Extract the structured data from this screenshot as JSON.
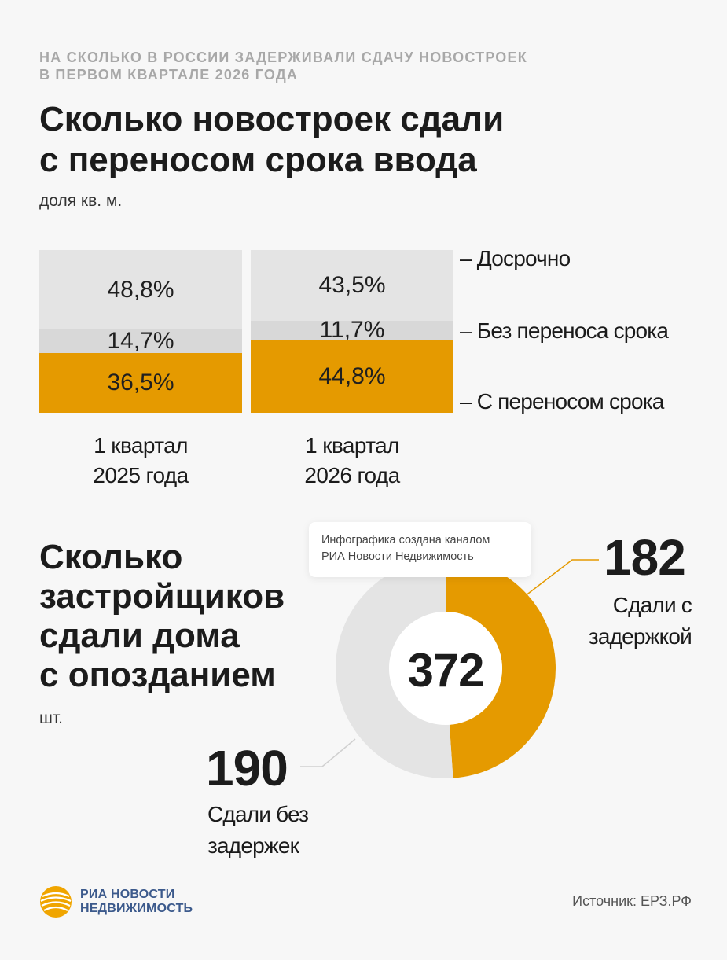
{
  "kicker": {
    "line1": "НА СКОЛЬКО В РОССИИ ЗАДЕРЖИВАЛИ СДАЧУ НОВОСТРОЕК",
    "line2": "В ПЕРВОМ КВАРТАЛЕ 2026 ГОДА"
  },
  "chart_data": [
    {
      "type": "bar",
      "stacked": true,
      "title": "Сколько новостроек сдали с переносом срока ввода",
      "title_lines": [
        "Сколько новостроек сдали",
        "с переносом срока ввода"
      ],
      "unit": "доля кв. м.",
      "categories": [
        {
          "line1": "1 квартал",
          "line2": "2025 года"
        },
        {
          "line1": "1 квартал",
          "line2": "2026 года"
        }
      ],
      "series": [
        {
          "name": "С переносом срока",
          "color": "#e59a00",
          "values": [
            36.5,
            44.8
          ],
          "labels": [
            "36,5%",
            "44,8%"
          ]
        },
        {
          "name": "Без переноса срока",
          "color": "#d8d8d8",
          "values": [
            14.7,
            11.7
          ],
          "labels": [
            "14,7%",
            "11,7%"
          ]
        },
        {
          "name": "Досрочно",
          "color": "#e4e4e4",
          "values": [
            48.8,
            43.5
          ],
          "labels": [
            "48,8%",
            "43,5%"
          ]
        }
      ],
      "legend": {
        "placement": "right",
        "items": [
          "– Досрочно",
          "– Без переноса срока",
          "– С переносом срока"
        ]
      },
      "ylim": [
        0,
        100
      ]
    },
    {
      "type": "pie",
      "donut": true,
      "title_lines": [
        "Сколько",
        "застройщиков",
        "сдали дома",
        "с опозданием"
      ],
      "unit": "шт.",
      "total": "372",
      "slices": [
        {
          "name": "Сдали с задержкой",
          "value": 182,
          "label": "182",
          "label_lines": [
            "Сдали с",
            "задержкой"
          ],
          "color": "#e59a00"
        },
        {
          "name": "Сдали без задержек",
          "value": 190,
          "label": "190",
          "label_lines": [
            "Сдали без",
            "задержек"
          ],
          "color": "#e4e4e4"
        }
      ]
    }
  ],
  "tooltip": {
    "line1": "Инфографика создана каналом",
    "line2": "РИА Новости Недвижимость"
  },
  "footer": {
    "logo_line1": "РИА НОВОСТИ",
    "logo_line2": "НЕДВИЖИМОСТЬ",
    "source": "Источник: ЕРЗ.РФ"
  },
  "colors": {
    "accent": "#e59a00",
    "logo": "#3c5a8c",
    "logo_sun": "#f0a500"
  }
}
